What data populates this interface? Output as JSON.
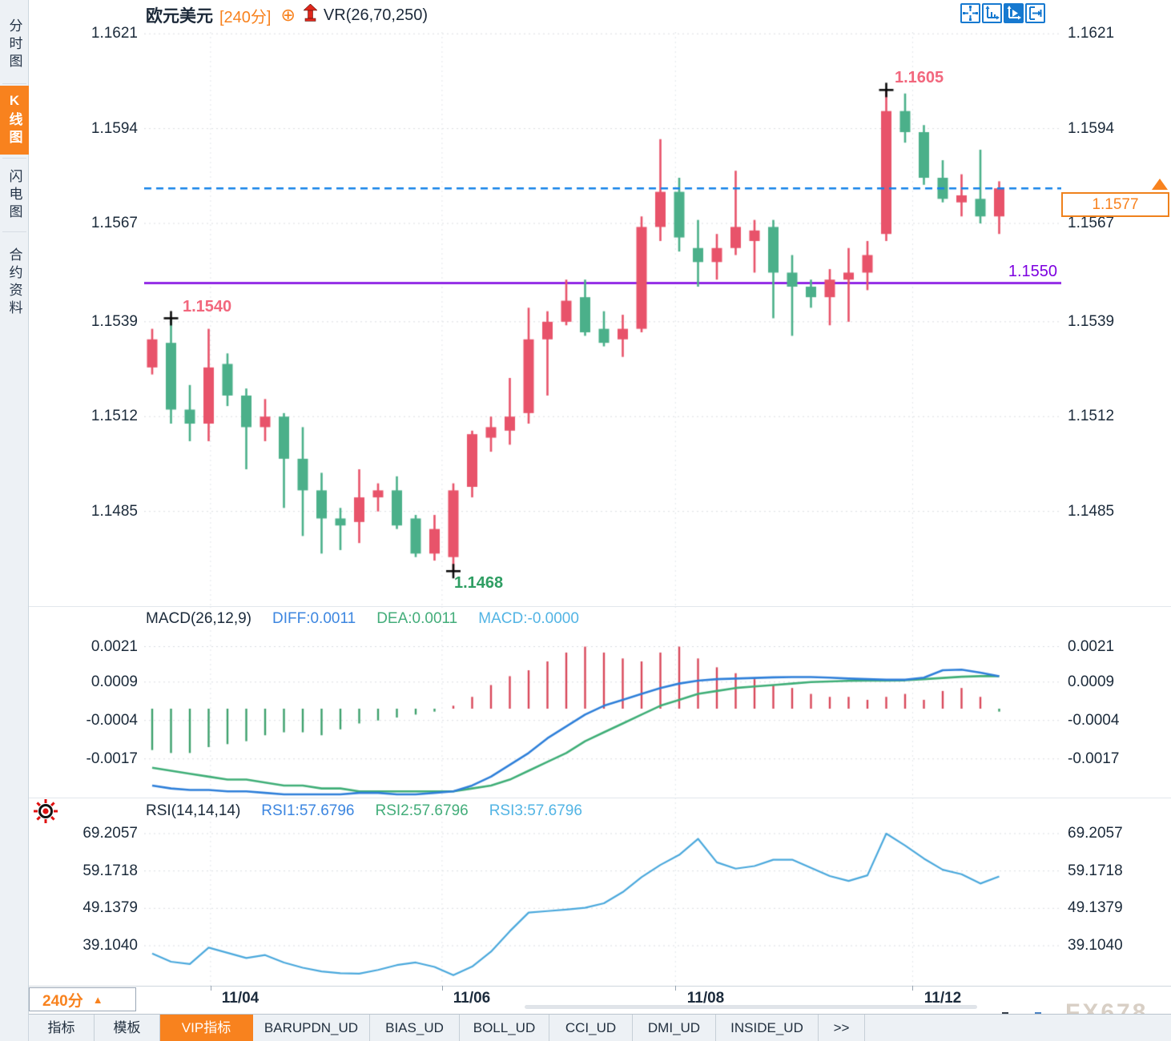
{
  "page": {
    "watermark": "FX678"
  },
  "sidebar": {
    "tabs": [
      {
        "label": "分时图",
        "active": false
      },
      {
        "label": "K线图",
        "active": true
      },
      {
        "label": "闪电图",
        "active": false
      },
      {
        "label": "合约资料",
        "active": false
      }
    ]
  },
  "header": {
    "symbol": "欧元美元",
    "period": "[240分]",
    "plus_icon": "⊕",
    "indicator": "VR(26,70,250)"
  },
  "toolbar": {
    "icons": [
      "crosshair",
      "axis-pan",
      "axis-play",
      "exit-right"
    ],
    "active_index": 2
  },
  "annotations": {
    "left_high_label": "1.1540",
    "high_label": "1.1605",
    "low_label": "1.1468",
    "support_label": "1.1550",
    "last_price": "1.1577"
  },
  "macd_legend": {
    "title": "MACD(26,12,9)",
    "diff": "DIFF:0.0011",
    "dea": "DEA:0.0011",
    "macd": "MACD:-0.0000"
  },
  "rsi_legend": {
    "title": "RSI(14,14,14)",
    "rsi1": "RSI1:57.6796",
    "rsi2": "RSI2:57.6796",
    "rsi3": "RSI3:57.6796"
  },
  "x_axis": {
    "labels": [
      "11/04",
      "11/06",
      "11/08",
      "11/12"
    ]
  },
  "period_selector": {
    "label": "240分",
    "arrow": "▲"
  },
  "bottom_tabs": [
    {
      "label": "指标",
      "active": false
    },
    {
      "label": "模板",
      "active": false
    },
    {
      "label": "VIP指标",
      "active": true
    },
    {
      "label": "BARUPDN_UD",
      "active": false
    },
    {
      "label": "BIAS_UD",
      "active": false
    },
    {
      "label": "BOLL_UD",
      "active": false
    },
    {
      "label": "CCI_UD",
      "active": false
    },
    {
      "label": "DMI_UD",
      "active": false
    },
    {
      "label": "INSIDE_UD",
      "active": false
    },
    {
      "label": ">>",
      "active": false
    }
  ],
  "colors": {
    "bull": "#e8536a",
    "bear": "#4bb08a",
    "dashed_line": "#1583e8",
    "support_line": "#7d00e0",
    "accent_orange": "#f8821e",
    "label_pink": "#f2677d",
    "label_green": "#2f9e63",
    "macd_diff": "#2e7fd9",
    "macd_dea": "#3fae77",
    "hist_up": "#d9485a",
    "hist_down": "#3da06c",
    "rsi_line": "#4aa8dc",
    "toolbar_blue": "#1679d0",
    "grid": "#dadde1"
  },
  "chart_data": {
    "type": "candlestick",
    "symbol": "欧元美元",
    "period": "240分",
    "x_dates": [
      "11/04",
      "11/06",
      "11/08",
      "11/12"
    ],
    "date_bar_positions": [
      3.1,
      15.4,
      27.8,
      40.4
    ],
    "price_axis": [
      1.1621,
      1.1594,
      1.1567,
      1.1539,
      1.1512,
      1.1485
    ],
    "ylim": [
      1.1458,
      1.16215
    ],
    "candles": [
      {
        "o": 1.1526,
        "h": 1.1537,
        "l": 1.1524,
        "c": 1.1534
      },
      {
        "o": 1.1533,
        "h": 1.154,
        "l": 1.151,
        "c": 1.1514
      },
      {
        "o": 1.1514,
        "h": 1.1521,
        "l": 1.1505,
        "c": 1.151
      },
      {
        "o": 1.151,
        "h": 1.1537,
        "l": 1.1505,
        "c": 1.1526
      },
      {
        "o": 1.1527,
        "h": 1.153,
        "l": 1.1515,
        "c": 1.1518
      },
      {
        "o": 1.1518,
        "h": 1.152,
        "l": 1.1497,
        "c": 1.1509
      },
      {
        "o": 1.1509,
        "h": 1.1517,
        "l": 1.1505,
        "c": 1.1512
      },
      {
        "o": 1.1512,
        "h": 1.1513,
        "l": 1.1486,
        "c": 1.15
      },
      {
        "o": 1.15,
        "h": 1.1509,
        "l": 1.1478,
        "c": 1.1491
      },
      {
        "o": 1.1491,
        "h": 1.1496,
        "l": 1.1473,
        "c": 1.1483
      },
      {
        "o": 1.1483,
        "h": 1.1486,
        "l": 1.1474,
        "c": 1.1481
      },
      {
        "o": 1.1482,
        "h": 1.1497,
        "l": 1.1476,
        "c": 1.1489
      },
      {
        "o": 1.1489,
        "h": 1.1493,
        "l": 1.1485,
        "c": 1.1491
      },
      {
        "o": 1.1491,
        "h": 1.1495,
        "l": 1.148,
        "c": 1.1481
      },
      {
        "o": 1.1483,
        "h": 1.1484,
        "l": 1.1472,
        "c": 1.1473
      },
      {
        "o": 1.1473,
        "h": 1.1484,
        "l": 1.1471,
        "c": 1.148
      },
      {
        "o": 1.1472,
        "h": 1.1493,
        "l": 1.1468,
        "c": 1.1491
      },
      {
        "o": 1.1492,
        "h": 1.1508,
        "l": 1.1489,
        "c": 1.1507
      },
      {
        "o": 1.1506,
        "h": 1.1512,
        "l": 1.1502,
        "c": 1.1509
      },
      {
        "o": 1.1508,
        "h": 1.1523,
        "l": 1.1504,
        "c": 1.1512
      },
      {
        "o": 1.1513,
        "h": 1.1543,
        "l": 1.151,
        "c": 1.1534
      },
      {
        "o": 1.1534,
        "h": 1.1542,
        "l": 1.1518,
        "c": 1.1539
      },
      {
        "o": 1.1539,
        "h": 1.1551,
        "l": 1.1538,
        "c": 1.1545
      },
      {
        "o": 1.1546,
        "h": 1.1551,
        "l": 1.1535,
        "c": 1.1536
      },
      {
        "o": 1.1537,
        "h": 1.1542,
        "l": 1.1532,
        "c": 1.1533
      },
      {
        "o": 1.1534,
        "h": 1.1541,
        "l": 1.1529,
        "c": 1.1537
      },
      {
        "o": 1.1537,
        "h": 1.1569,
        "l": 1.1536,
        "c": 1.1566
      },
      {
        "o": 1.1566,
        "h": 1.1591,
        "l": 1.1562,
        "c": 1.1576
      },
      {
        "o": 1.1576,
        "h": 1.158,
        "l": 1.1559,
        "c": 1.1563
      },
      {
        "o": 1.156,
        "h": 1.1568,
        "l": 1.1549,
        "c": 1.1556
      },
      {
        "o": 1.1556,
        "h": 1.1564,
        "l": 1.1551,
        "c": 1.156
      },
      {
        "o": 1.156,
        "h": 1.1582,
        "l": 1.1558,
        "c": 1.1566
      },
      {
        "o": 1.1562,
        "h": 1.1568,
        "l": 1.1553,
        "c": 1.1565
      },
      {
        "o": 1.1566,
        "h": 1.1568,
        "l": 1.154,
        "c": 1.1553
      },
      {
        "o": 1.1553,
        "h": 1.1558,
        "l": 1.1535,
        "c": 1.1549
      },
      {
        "o": 1.1549,
        "h": 1.1551,
        "l": 1.1543,
        "c": 1.1546
      },
      {
        "o": 1.1546,
        "h": 1.1554,
        "l": 1.1538,
        "c": 1.1551
      },
      {
        "o": 1.1551,
        "h": 1.156,
        "l": 1.1539,
        "c": 1.1553
      },
      {
        "o": 1.1553,
        "h": 1.1562,
        "l": 1.1548,
        "c": 1.1558
      },
      {
        "o": 1.1564,
        "h": 1.1605,
        "l": 1.1562,
        "c": 1.1599
      },
      {
        "o": 1.1599,
        "h": 1.1604,
        "l": 1.159,
        "c": 1.1593
      },
      {
        "o": 1.1593,
        "h": 1.1595,
        "l": 1.1578,
        "c": 1.158
      },
      {
        "o": 1.158,
        "h": 1.1585,
        "l": 1.1573,
        "c": 1.1574
      },
      {
        "o": 1.1573,
        "h": 1.1581,
        "l": 1.1569,
        "c": 1.1575
      },
      {
        "o": 1.1574,
        "h": 1.1588,
        "l": 1.1567,
        "c": 1.1569
      },
      {
        "o": 1.1569,
        "h": 1.1579,
        "l": 1.1564,
        "c": 1.1577
      }
    ],
    "annotations": {
      "crosses": [
        {
          "bar": 1,
          "at": "high",
          "price": 1.154,
          "label": "1.1540"
        },
        {
          "bar": 16,
          "at": "low",
          "price": 1.1468,
          "label": "1.1468"
        },
        {
          "bar": 39,
          "at": "high",
          "price": 1.1605,
          "label": "1.1605"
        }
      ],
      "hlines": [
        {
          "price": 1.1577,
          "style": "dashed",
          "label": "1.1577"
        },
        {
          "price": 1.155,
          "style": "solid",
          "label": "1.1550"
        }
      ]
    },
    "macd": {
      "params": "26,12,9",
      "axis": [
        0.0021,
        0.0009,
        -0.0004,
        -0.0017
      ],
      "last": {
        "diff": 0.0011,
        "dea": 0.0011,
        "macd": -0.0
      },
      "diff": [
        -0.0026,
        -0.0027,
        -0.00275,
        -0.00275,
        -0.0028,
        -0.0028,
        -0.00285,
        -0.0029,
        -0.0029,
        -0.0029,
        -0.0029,
        -0.00285,
        -0.00285,
        -0.0029,
        -0.0029,
        -0.00285,
        -0.0028,
        -0.0026,
        -0.0023,
        -0.0019,
        -0.0015,
        -0.001,
        -0.0006,
        -0.0002,
        0.0001,
        0.0003,
        0.0005,
        0.0007,
        0.00085,
        0.00095,
        0.001,
        0.00102,
        0.00104,
        0.00106,
        0.00107,
        0.00107,
        0.00105,
        0.00102,
        0.001,
        0.00098,
        0.00098,
        0.00105,
        0.0013,
        0.00132,
        0.00122,
        0.0011
      ],
      "dea": [
        -0.002,
        -0.0021,
        -0.0022,
        -0.0023,
        -0.0024,
        -0.0024,
        -0.0025,
        -0.0026,
        -0.0026,
        -0.0027,
        -0.0027,
        -0.0028,
        -0.0028,
        -0.0028,
        -0.0028,
        -0.0028,
        -0.0028,
        -0.0027,
        -0.0026,
        -0.0024,
        -0.0021,
        -0.0018,
        -0.0015,
        -0.0011,
        -0.0008,
        -0.0005,
        -0.0002,
        0.0001,
        0.0003,
        0.0005,
        0.0006,
        0.0007,
        0.00075,
        0.0008,
        0.00085,
        0.0009,
        0.00092,
        0.00094,
        0.00095,
        0.00095,
        0.00096,
        0.001,
        0.00104,
        0.00108,
        0.0011,
        0.0011
      ],
      "hist": [
        -0.0014,
        -0.0015,
        -0.0015,
        -0.0013,
        -0.0012,
        -0.0011,
        -0.0009,
        -0.0008,
        -0.0008,
        -0.0009,
        -0.0007,
        -0.0005,
        -0.0004,
        -0.0003,
        -0.0002,
        -0.0001,
        0.0001,
        0.0004,
        0.0008,
        0.0011,
        0.0013,
        0.0016,
        0.0019,
        0.0021,
        0.0019,
        0.0017,
        0.0016,
        0.0019,
        0.0021,
        0.0017,
        0.0014,
        0.0012,
        0.001,
        0.0008,
        0.0007,
        0.0005,
        0.0004,
        0.0004,
        0.0003,
        0.0004,
        0.0005,
        0.0003,
        0.0006,
        0.0007,
        0.0004,
        -0.0001
      ]
    },
    "rsi": {
      "params": "14,14,14",
      "axis": [
        69.2057,
        59.1718,
        49.1379,
        39.104
      ],
      "last": 57.6796,
      "values": [
        37.0,
        34.8,
        34.2,
        38.6,
        37.2,
        35.8,
        36.6,
        34.6,
        33.2,
        32.2,
        31.7,
        31.6,
        32.6,
        33.9,
        34.6,
        33.4,
        31.2,
        33.5,
        37.5,
        43.0,
        48.0,
        48.4,
        48.8,
        49.3,
        50.5,
        53.5,
        57.5,
        60.8,
        63.5,
        67.8,
        61.5,
        59.8,
        60.5,
        62.2,
        62.2,
        60.0,
        57.8,
        56.5,
        58.0,
        69.2,
        66.0,
        62.5,
        59.5,
        58.3,
        55.8,
        57.7
      ]
    }
  }
}
